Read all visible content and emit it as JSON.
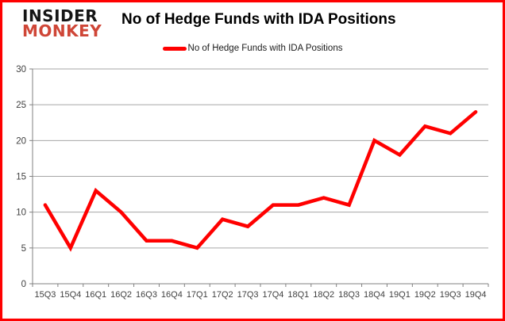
{
  "brand": {
    "line1": "INSIDER",
    "line2": "MONKEY",
    "line2_color": "#cf4637"
  },
  "title": "No of Hedge Funds with IDA Positions",
  "legend": {
    "label": "No of Hedge Funds with IDA Positions",
    "line_color": "#ff0000"
  },
  "chart_data": {
    "type": "line",
    "title": "No of Hedge Funds with IDA Positions",
    "categories": [
      "15Q3",
      "15Q4",
      "16Q1",
      "16Q2",
      "16Q3",
      "16Q4",
      "17Q1",
      "17Q2",
      "17Q3",
      "17Q4",
      "18Q1",
      "18Q2",
      "18Q3",
      "18Q4",
      "19Q1",
      "19Q2",
      "19Q3",
      "19Q4"
    ],
    "series": [
      {
        "name": "No of Hedge Funds with IDA Positions",
        "color": "#ff0000",
        "values": [
          11,
          5,
          13,
          10,
          6,
          6,
          5,
          9,
          8,
          11,
          11,
          12,
          11,
          20,
          18,
          22,
          21,
          24
        ]
      }
    ],
    "xlabel": "",
    "ylabel": "",
    "ylim": [
      0,
      30
    ],
    "ytick_step": 5,
    "yticks": [
      0,
      5,
      10,
      15,
      20,
      25,
      30
    ],
    "grid": true,
    "legend_position": "top",
    "gridline_color": "#a6a6a6",
    "axis_color": "#808080",
    "tick_label_color": "#404040"
  }
}
